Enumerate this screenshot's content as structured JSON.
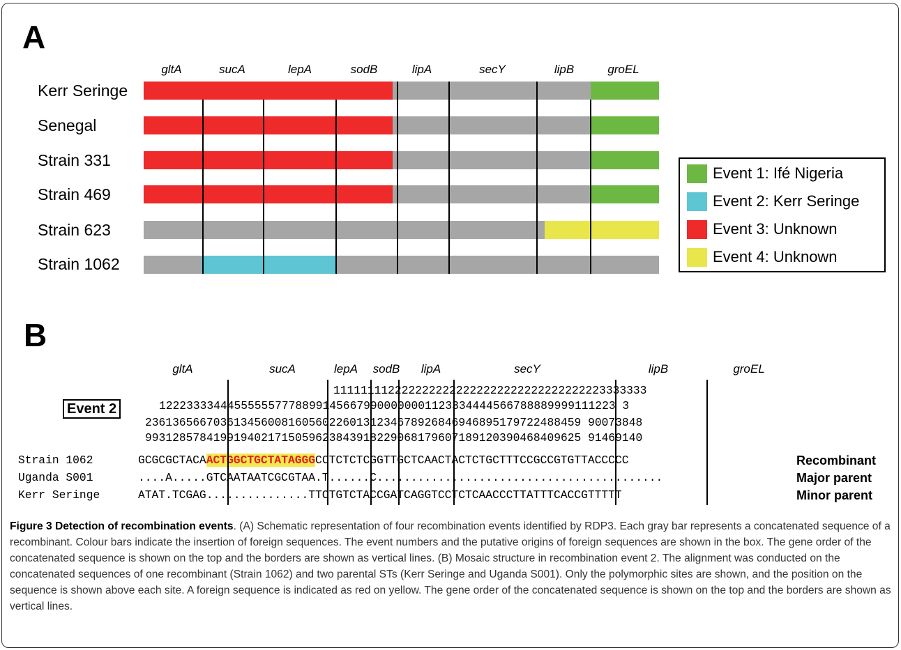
{
  "panel_a": {
    "letter": "A",
    "genes": [
      "gltA",
      "sucA",
      "lepA",
      "sodB",
      "lipA",
      "secY",
      "lipB",
      "groEL"
    ],
    "strains": [
      {
        "name": "Kerr Seringe"
      },
      {
        "name": "Senegal"
      },
      {
        "name": "Strain 331"
      },
      {
        "name": "Strain 469"
      },
      {
        "name": "Strain 623"
      },
      {
        "name": "Strain 1062"
      }
    ],
    "legend": [
      {
        "label": "Event 1: Ifé Nigeria",
        "color": "#6db843"
      },
      {
        "label": "Event 2: Kerr Seringe",
        "color": "#5ec5d3"
      },
      {
        "label": "Event 3: Unknown",
        "color": "#ee2a2a"
      },
      {
        "label": "Event 4: Unknown",
        "color": "#e8e64a"
      }
    ],
    "bar_color": "#a6a6a6"
  },
  "panel_b": {
    "letter": "B",
    "genes": [
      "gltA",
      "sucA",
      "lepA",
      "sodB",
      "lipA",
      "secY",
      "lipB",
      "groEL"
    ],
    "event_label": "Event 2",
    "position_rows": [
      "                                   1111111122222222222222222222222222222223333333",
      "1222333344455555577788991456679900000001123334444566788889999111223 3",
      "",
      ""
    ],
    "pos_lines": [
      "                              1111111122222222222222222222222222222223333333",
      "1222333344455555577788991456679900000001123334444566788889999111 2233",
      "2361365667036134560081605602260131234678926846946895179722488459 90073848",
      "9931285784199194021715059623843918229068179607189120390468409625 91469140"
    ],
    "sequences": [
      {
        "label": "Strain 1062",
        "pre": "GCGCGCTACA",
        "highlight": "ACTGGCTGCTATAGGG",
        "post": "CCTCTCTCGGTTGCTCAACTACTCTGCTTTCCGCCGTGTTACCCCC",
        "role": "Recombinant"
      },
      {
        "label": "Uganda S001",
        "pre": "....A.....GTCAATAATCGCGTAA.T......C..........................................",
        "highlight": "",
        "post": "",
        "role": "Major parent"
      },
      {
        "label": "Kerr Seringe",
        "pre": "ATAT.TCGAG...............TTCTGTCTACCGATCAGGTCCTCTCAACCCTTATTTCACCGTTTTT",
        "highlight": "",
        "post": "",
        "role": "Minor parent"
      }
    ],
    "highlight_colors": {
      "text": "#e02020",
      "background": "#f2e94e"
    }
  },
  "caption": {
    "title": "Figure 3 Detection of recombination events",
    "body": ". (A) Schematic representation of four recombination events identified by RDP3. Each gray bar represents a concatenated sequence of a recombinant. Colour bars indicate the insertion of foreign sequences. The event numbers and the putative origins of foreign sequences are shown in the box. The gene order of the concatenated sequence is shown on the top and the borders are shown as vertical lines. (B) Mosaic structure in recombination event 2. The alignment was conducted on the concatenated sequences of one recombinant (Strain 1062) and two parental STs (Kerr Seringe and Uganda S001). Only the polymorphic sites are shown, and the position on the sequence is shown above each site. A foreign sequence is indicated as red on yellow. The gene order of the concatenated sequence is shown on the top and the borders are shown as vertical lines."
  }
}
